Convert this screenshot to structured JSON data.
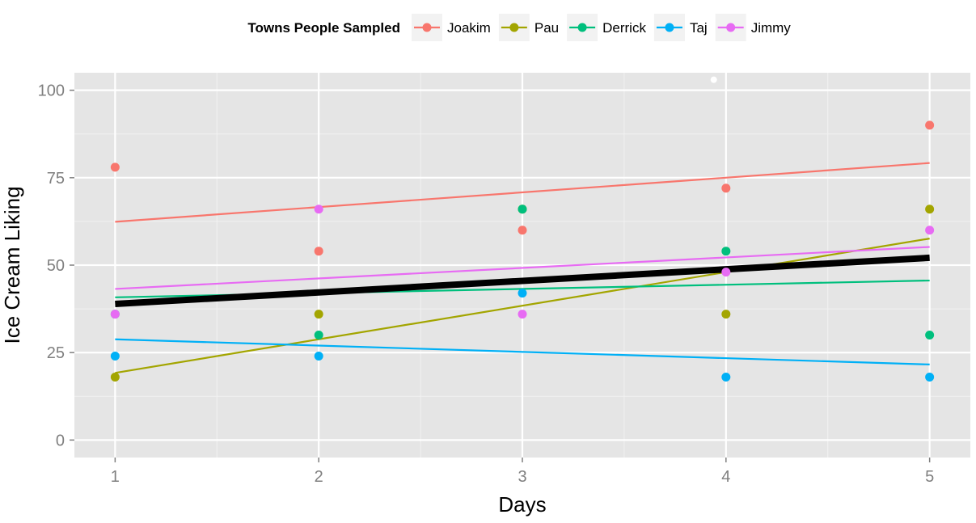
{
  "chart_data": {
    "type": "scatter",
    "title": "",
    "xlabel": "Days",
    "ylabel": "Ice Cream Liking",
    "xlim": [
      0.8,
      5.2
    ],
    "ylim": [
      -5,
      105
    ],
    "x_ticks": [
      1,
      2,
      3,
      4,
      5
    ],
    "x_tick_labels": [
      "1",
      "2",
      "3",
      "4",
      "5"
    ],
    "y_ticks": [
      0,
      25,
      50,
      75,
      100
    ],
    "y_tick_labels": [
      "0",
      "25",
      "50",
      "75",
      "100"
    ],
    "grid": true,
    "background": "#e5e5e5",
    "legend": {
      "title": "Towns People Sampled",
      "placement": "top"
    },
    "series": [
      {
        "name": "Joakim",
        "color": "#f8766d",
        "x": [
          1,
          2,
          3,
          4,
          5
        ],
        "y": [
          78,
          54,
          60,
          72,
          90
        ],
        "fit": [
          62.4,
          79.2
        ]
      },
      {
        "name": "Pau",
        "color": "#a3a500",
        "x": [
          1,
          2,
          3,
          4,
          5
        ],
        "y": [
          18,
          36,
          66,
          36,
          66
        ],
        "fit": [
          19.2,
          57.6
        ]
      },
      {
        "name": "Derrick",
        "color": "#00bf7d",
        "x": [
          1,
          2,
          3,
          4,
          5
        ],
        "y": [
          36,
          30,
          66,
          54,
          30
        ],
        "fit": [
          40.8,
          45.6
        ]
      },
      {
        "name": "Taj",
        "color": "#00b0f6",
        "x": [
          1,
          2,
          3,
          4,
          5
        ],
        "y": [
          24,
          24,
          42,
          18,
          18
        ],
        "fit": [
          28.8,
          21.6
        ]
      },
      {
        "name": "Jimmy",
        "color": "#e76bf3",
        "x": [
          1,
          2,
          3,
          4,
          5
        ],
        "y": [
          36,
          66,
          36,
          48,
          60
        ],
        "fit": [
          43.2,
          55.2
        ]
      }
    ],
    "overall_fit": {
      "color": "#000000",
      "y": [
        38.9,
        52.1
      ]
    },
    "annotations": [
      {
        "x": 3.94,
        "y": 103,
        "color": "#ffffff"
      }
    ]
  }
}
